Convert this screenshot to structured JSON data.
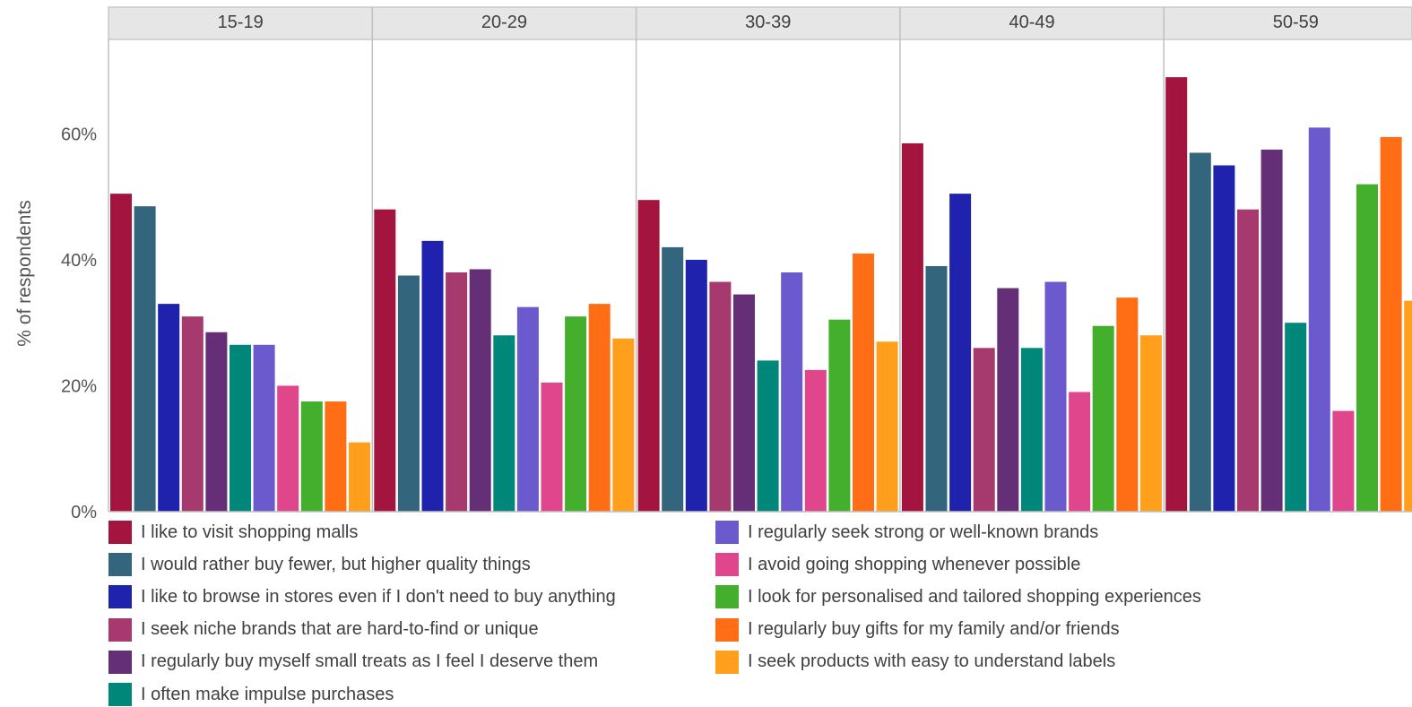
{
  "chart_data": {
    "type": "bar",
    "ylabel": "% of respondents",
    "ylim": [
      0,
      75
    ],
    "yticks": [
      0,
      20,
      40,
      60
    ],
    "ytick_labels": [
      "0%",
      "20%",
      "40%",
      "60%"
    ],
    "grid": false,
    "legend_position": "bottom",
    "facets": [
      "15-19",
      "20-29",
      "30-39",
      "40-49",
      "50-59"
    ],
    "series": [
      {
        "name": "I like to visit shopping malls",
        "color": "#a3143f",
        "values": [
          50.5,
          48,
          49.5,
          58.5,
          69
        ]
      },
      {
        "name": "I would rather buy fewer, but higher quality things",
        "color": "#33657c",
        "values": [
          48.5,
          37.5,
          42,
          39,
          57
        ]
      },
      {
        "name": "I like to browse in stores even if I don't need to buy anything",
        "color": "#1e22ad",
        "values": [
          33,
          43,
          40,
          50.5,
          55
        ]
      },
      {
        "name": "I seek niche brands that are hard-to-find or unique",
        "color": "#a63a6e",
        "values": [
          31,
          38,
          36.5,
          26,
          48
        ]
      },
      {
        "name": "I regularly buy myself small treats as I feel I deserve them",
        "color": "#652f78",
        "values": [
          28.5,
          38.5,
          34.5,
          35.5,
          57.5
        ]
      },
      {
        "name": "I often make impulse purchases",
        "color": "#00877a",
        "values": [
          26.5,
          28,
          24,
          26,
          30
        ]
      },
      {
        "name": "I regularly seek strong or well-known brands",
        "color": "#6b5acd",
        "values": [
          26.5,
          32.5,
          38,
          36.5,
          61
        ]
      },
      {
        "name": "I avoid going shopping whenever possible",
        "color": "#e0468b",
        "values": [
          20,
          20.5,
          22.5,
          19,
          16
        ]
      },
      {
        "name": "I look for personalised and tailored shopping experiences",
        "color": "#44af2c",
        "values": [
          17.5,
          31,
          30.5,
          29.5,
          52
        ]
      },
      {
        "name": "I regularly buy gifts for my family and/or friends",
        "color": "#ff6e14",
        "values": [
          17.5,
          33,
          41,
          34,
          59.5
        ]
      },
      {
        "name": "I seek products with easy to understand labels",
        "color": "#ff9f1c",
        "values": [
          11,
          27.5,
          27,
          28,
          33.5
        ]
      }
    ]
  }
}
